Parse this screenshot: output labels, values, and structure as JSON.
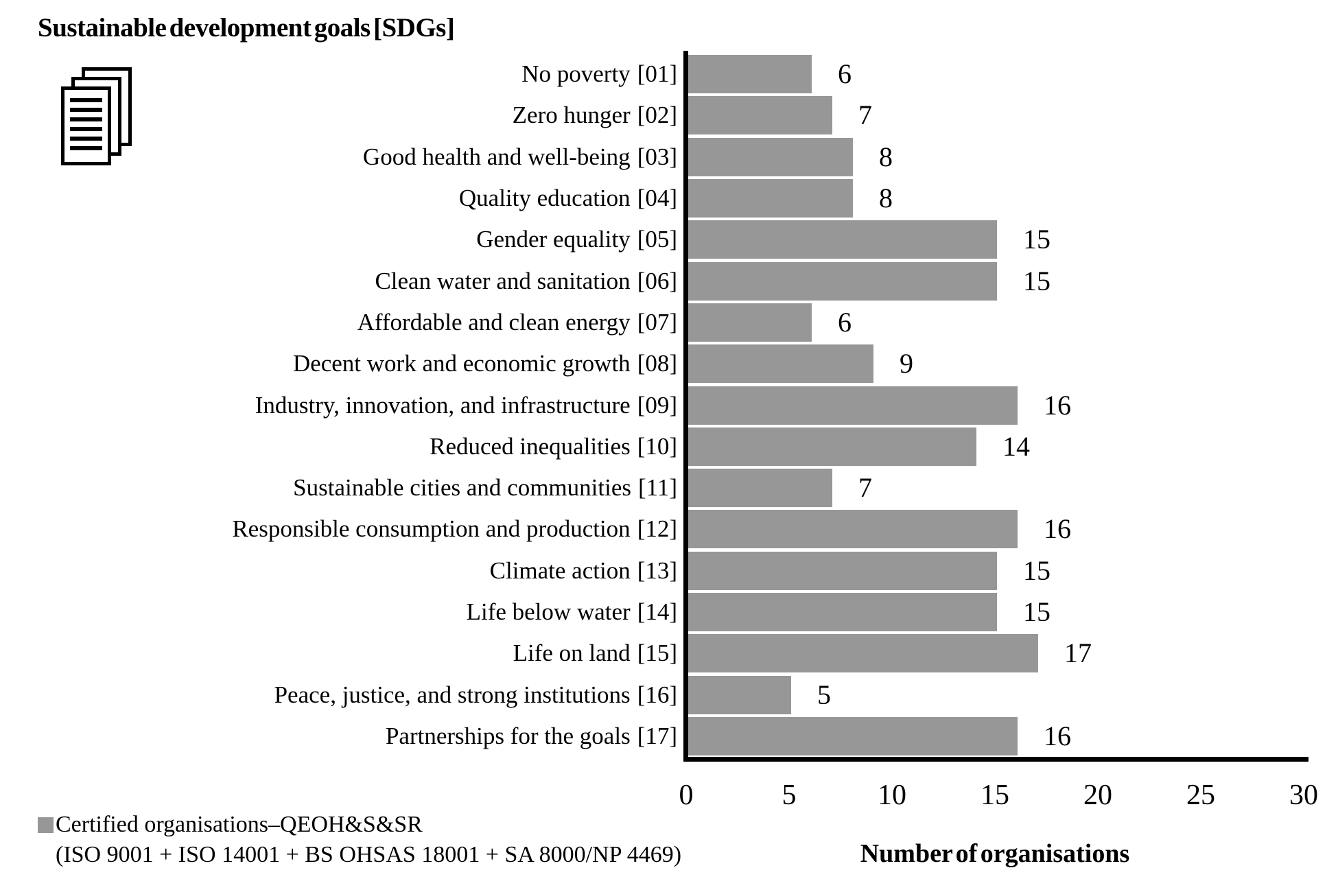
{
  "title": "Sustainable development goals [SDGs]",
  "icons": {
    "top_left": "documents-stack-icon"
  },
  "chart_data": {
    "type": "bar",
    "orientation": "horizontal",
    "title": "Sustainable development goals [SDGs]",
    "categories": [
      "No poverty",
      "Zero hunger",
      "Good health and well-being",
      "Quality education",
      "Gender equality",
      "Clean water and sanitation",
      "Affordable and clean energy",
      "Decent work and economic growth",
      "Industry, innovation, and infrastructure",
      "Reduced inequalities",
      "Sustainable cities and communities",
      "Responsible consumption and production",
      "Climate action",
      "Life below water",
      "Life on land",
      "Peace, justice, and strong institutions",
      "Partnerships for the goals"
    ],
    "category_codes": [
      "[01]",
      "[02]",
      "[03]",
      "[04]",
      "[05]",
      "[06]",
      "[07]",
      "[08]",
      "[09]",
      "[10]",
      "[11]",
      "[12]",
      "[13]",
      "[14]",
      "[15]",
      "[16]",
      "[17]"
    ],
    "values": [
      6,
      7,
      8,
      8,
      15,
      15,
      6,
      9,
      16,
      14,
      7,
      16,
      15,
      15,
      17,
      5,
      16
    ],
    "series": [
      {
        "name": "Certified organisations–QEOH&S&SR (ISO 9001 + ISO 14001 + BS OHSAS 18001 + SA 8000/NP 4469)",
        "values": [
          6,
          7,
          8,
          8,
          15,
          15,
          6,
          9,
          16,
          14,
          7,
          16,
          15,
          15,
          17,
          5,
          16
        ]
      }
    ],
    "xlabel": "Number of organisations",
    "ylabel": "Sustainable development goals [SDGs]",
    "xlim": [
      0,
      30
    ],
    "x_ticks": [
      "0",
      "5",
      "10",
      "15",
      "20",
      "25",
      "30"
    ],
    "x_tick_values": [
      0,
      5,
      10,
      15,
      20,
      25,
      30
    ],
    "grid": false,
    "bar_color": "#979797",
    "data_labels": true,
    "legend_position": "bottom-left"
  },
  "legend": {
    "line1": "Certified organisations–QEOH&S&SR",
    "line2": "(ISO 9001 + ISO 14001 + BS OHSAS 18001 + SA 8000/NP 4469)"
  }
}
